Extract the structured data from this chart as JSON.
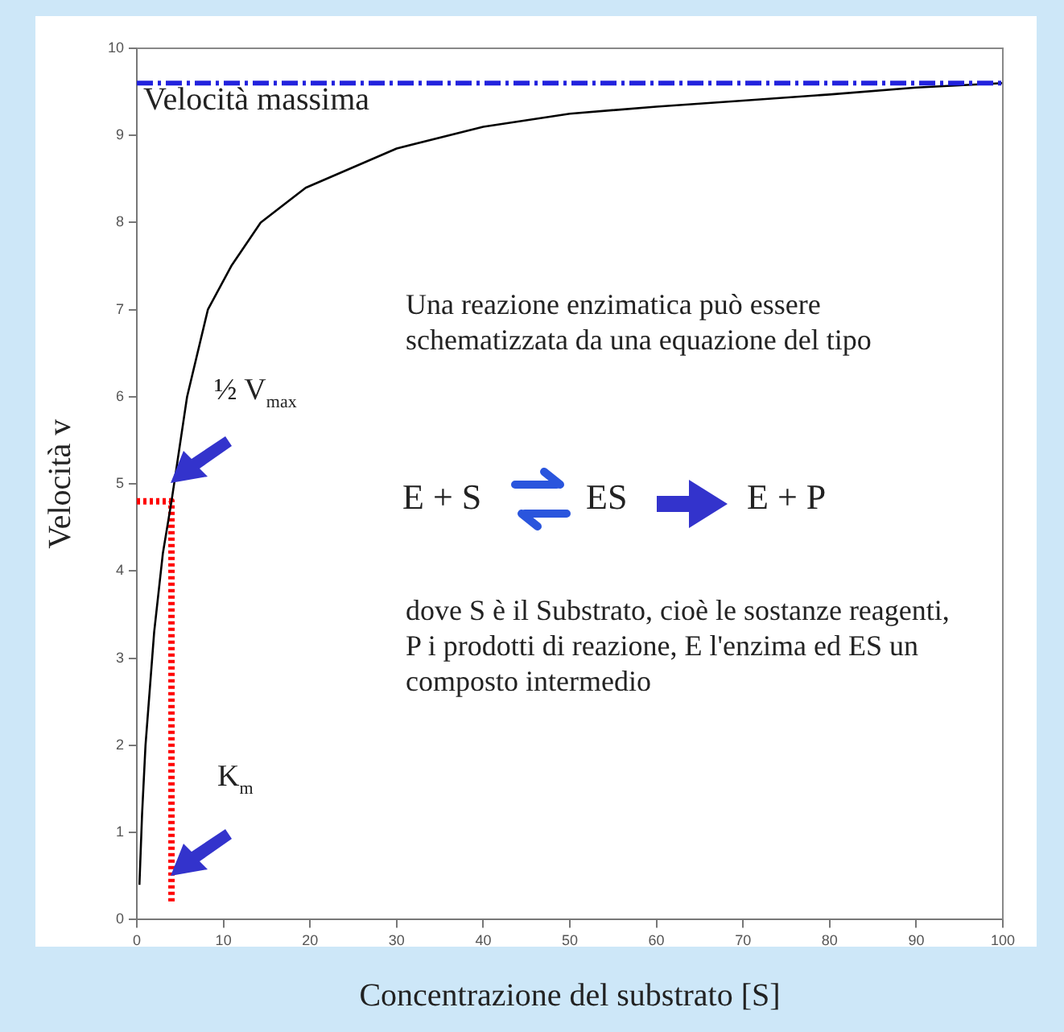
{
  "chart_data": {
    "type": "line",
    "xlabel": "Concentrazione del substrato [S]",
    "ylabel": "Velocità v",
    "xlim": [
      0,
      100
    ],
    "ylim": [
      0,
      10
    ],
    "xticks": [
      0,
      10,
      20,
      30,
      40,
      50,
      60,
      70,
      80,
      90,
      100
    ],
    "yticks": [
      0,
      1,
      2,
      3,
      4,
      5,
      6,
      7,
      8,
      9,
      10
    ],
    "grid": false,
    "legend": false,
    "marker": "none",
    "series": [
      {
        "color": "#000000",
        "x": [
          0.3,
          0.6,
          1,
          2,
          3,
          4,
          5.8,
          8.2,
          10.9,
          14.3,
          19.5,
          30,
          40,
          50,
          60,
          70,
          80,
          90,
          100
        ],
        "values": [
          0.4,
          1.2,
          2,
          3.3,
          4.2,
          4.8,
          6,
          7,
          7.5,
          8,
          8.4,
          8.85,
          9.1,
          9.25,
          9.33,
          9.4,
          9.47,
          9.55,
          9.6
        ]
      },
      {
        "color": "#ff0000",
        "line_style": "dotted",
        "x": [
          0,
          4,
          4
        ],
        "values": [
          4.8,
          4.8,
          0.2
        ]
      }
    ],
    "ref_lines": [
      {
        "axis": "y",
        "value": 9.6,
        "label": "Velocità massima",
        "color": "#2222dd",
        "line_style": "dashed"
      }
    ],
    "annotations": [
      "½ V$_{max}$",
      "K$_{m}$",
      "Una reazione enzimatica può essere schematizzata da una equazione del tipo",
      "E + S",
      "ES",
      "E + P",
      "dove S è il Substrato, cioè le sostanze reagenti, P i prodotti di reazione, E l'enzima ed ES un composto intermedio"
    ]
  }
}
